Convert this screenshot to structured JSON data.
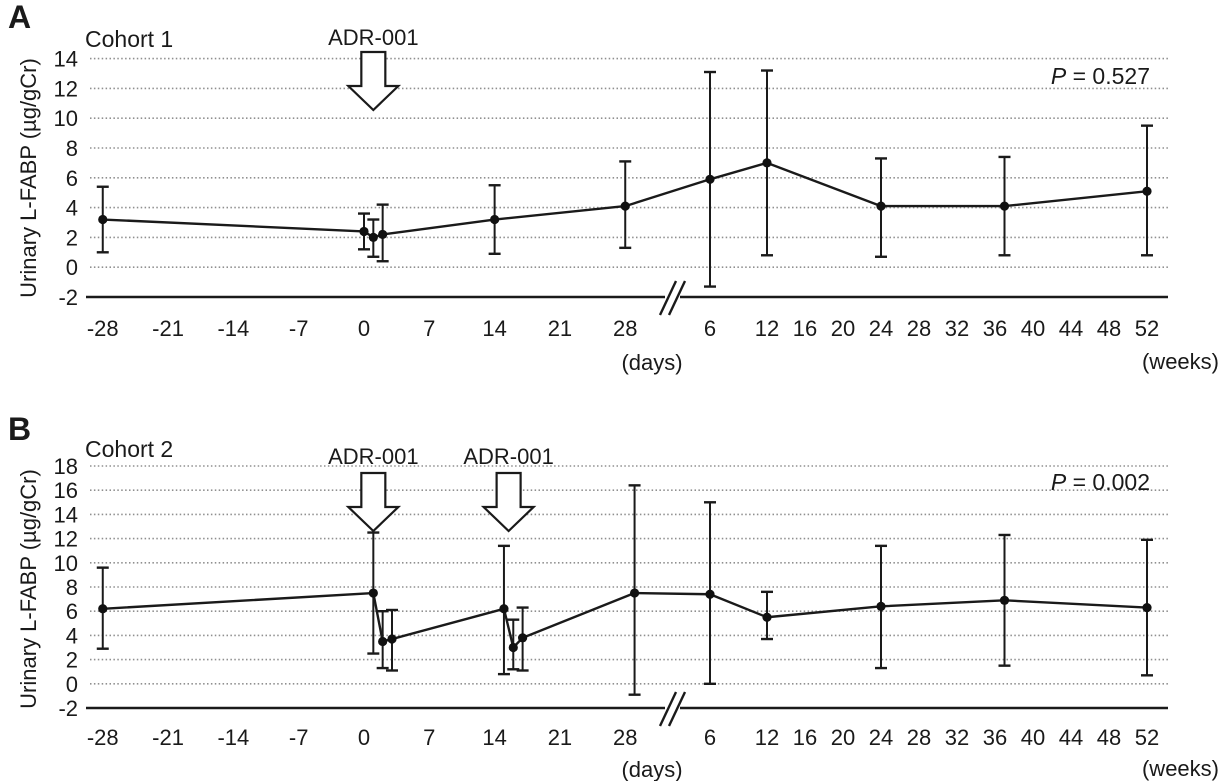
{
  "figure": {
    "background": "#ffffff",
    "colors": {
      "ink": "#1a1a1a",
      "grid": "#8f8f8f",
      "marker": "#111111",
      "arrow_fill": "#ffffff"
    },
    "x_day_ticks": [
      -28,
      -21,
      -14,
      -7,
      0,
      7,
      14,
      21,
      28
    ],
    "x_week_ticks": [
      6,
      12,
      16,
      20,
      24,
      28,
      32,
      36,
      40,
      44,
      48,
      52
    ],
    "x_unit_days": "(days)",
    "x_unit_weeks": "(weeks)",
    "axis_break_glyph": "//"
  },
  "chart_data": [
    {
      "type": "line",
      "panel": "A",
      "title": "Cohort 1",
      "ylabel": "Urinary L-FABP (µg/gCr)",
      "ylim": [
        -2,
        14
      ],
      "ytick_step": 2,
      "grid": "dotted horizontal, on",
      "legend": "none",
      "p_symbol": "P",
      "p_text": " = 0.527",
      "x_axis_note": "x axis split: days -28 to 28, axis break, weeks 6 to 52",
      "annotations": [
        {
          "label": "ADR-001",
          "scale": "days",
          "x": 1
        }
      ],
      "points": [
        {
          "scale": "days",
          "x": -28,
          "mean": 3.2,
          "lo": 1.0,
          "hi": 5.4
        },
        {
          "scale": "days",
          "x": 0,
          "mean": 2.4,
          "lo": 1.2,
          "hi": 3.6
        },
        {
          "scale": "days",
          "x": 1,
          "mean": 2.0,
          "lo": 0.7,
          "hi": 3.2
        },
        {
          "scale": "days",
          "x": 2,
          "mean": 2.2,
          "lo": 0.4,
          "hi": 4.2
        },
        {
          "scale": "days",
          "x": 14,
          "mean": 3.2,
          "lo": 0.9,
          "hi": 5.5
        },
        {
          "scale": "days",
          "x": 28,
          "mean": 4.1,
          "lo": 1.3,
          "hi": 7.1
        },
        {
          "scale": "weeks",
          "x": 6,
          "mean": 5.9,
          "lo": -1.3,
          "hi": 13.1
        },
        {
          "scale": "weeks",
          "x": 12,
          "mean": 7.0,
          "lo": 0.8,
          "hi": 13.2
        },
        {
          "scale": "weeks",
          "x": 24,
          "mean": 4.1,
          "lo": 0.7,
          "hi": 7.3
        },
        {
          "scale": "weeks",
          "x": 37,
          "mean": 4.1,
          "lo": 0.8,
          "hi": 7.4
        },
        {
          "scale": "weeks",
          "x": 52,
          "mean": 5.1,
          "lo": 0.8,
          "hi": 9.5
        }
      ]
    },
    {
      "type": "line",
      "panel": "B",
      "title": "Cohort 2",
      "ylabel": "Urinary L-FABP (µg/gCr)",
      "ylim": [
        -2,
        18
      ],
      "ytick_step": 2,
      "grid": "dotted horizontal, on",
      "legend": "none",
      "p_symbol": "P",
      "p_text": " = 0.002",
      "x_axis_note": "x axis split: days -28 to 29, axis break, weeks 6 to 52",
      "annotations": [
        {
          "label": "ADR-001",
          "scale": "days",
          "x": 1
        },
        {
          "label": "ADR-001",
          "scale": "days",
          "x": 15.5
        }
      ],
      "points": [
        {
          "scale": "days",
          "x": -28,
          "mean": 6.2,
          "lo": 2.9,
          "hi": 9.6
        },
        {
          "scale": "days",
          "x": 1,
          "mean": 7.5,
          "lo": 2.5,
          "hi": 12.5
        },
        {
          "scale": "days",
          "x": 2,
          "mean": 3.5,
          "lo": 1.3,
          "hi": 6.0
        },
        {
          "scale": "days",
          "x": 3,
          "mean": 3.7,
          "lo": 1.1,
          "hi": 6.1
        },
        {
          "scale": "days",
          "x": 15,
          "mean": 6.2,
          "lo": 0.8,
          "hi": 11.4
        },
        {
          "scale": "days",
          "x": 16,
          "mean": 3.0,
          "lo": 1.2,
          "hi": 5.3
        },
        {
          "scale": "days",
          "x": 17,
          "mean": 3.8,
          "lo": 1.1,
          "hi": 6.3
        },
        {
          "scale": "days",
          "x": 29,
          "mean": 7.5,
          "lo": -0.9,
          "hi": 16.4
        },
        {
          "scale": "weeks",
          "x": 6,
          "mean": 7.4,
          "lo": 0.0,
          "hi": 15.0
        },
        {
          "scale": "weeks",
          "x": 12,
          "mean": 5.5,
          "lo": 3.7,
          "hi": 7.6
        },
        {
          "scale": "weeks",
          "x": 24,
          "mean": 6.4,
          "lo": 1.3,
          "hi": 11.4
        },
        {
          "scale": "weeks",
          "x": 37,
          "mean": 6.9,
          "lo": 1.5,
          "hi": 12.3
        },
        {
          "scale": "weeks",
          "x": 52,
          "mean": 6.3,
          "lo": 0.7,
          "hi": 11.9
        }
      ]
    }
  ]
}
